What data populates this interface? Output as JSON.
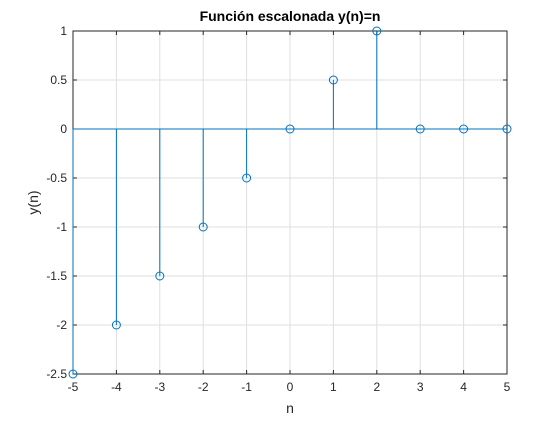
{
  "chart_data": {
    "type": "stem",
    "title": "Función escalonada y(n)=n",
    "xlabel": "n",
    "ylabel": "y(n)",
    "xlim": [
      -5,
      5
    ],
    "ylim": [
      -2.5,
      1
    ],
    "grid": true,
    "x_ticks": [
      -5,
      -4,
      -3,
      -2,
      -1,
      0,
      1,
      2,
      3,
      4,
      5
    ],
    "y_ticks": [
      -2.5,
      -2,
      -1.5,
      -1,
      -0.5,
      0,
      0.5,
      1
    ],
    "x": [
      -5,
      -4,
      -3,
      -2,
      -1,
      0,
      1,
      2,
      3,
      4,
      5
    ],
    "y": [
      -2.5,
      -2,
      -1.5,
      -1,
      -0.5,
      0,
      0.5,
      1,
      0,
      0,
      0
    ],
    "series_color": "#0072BD"
  }
}
